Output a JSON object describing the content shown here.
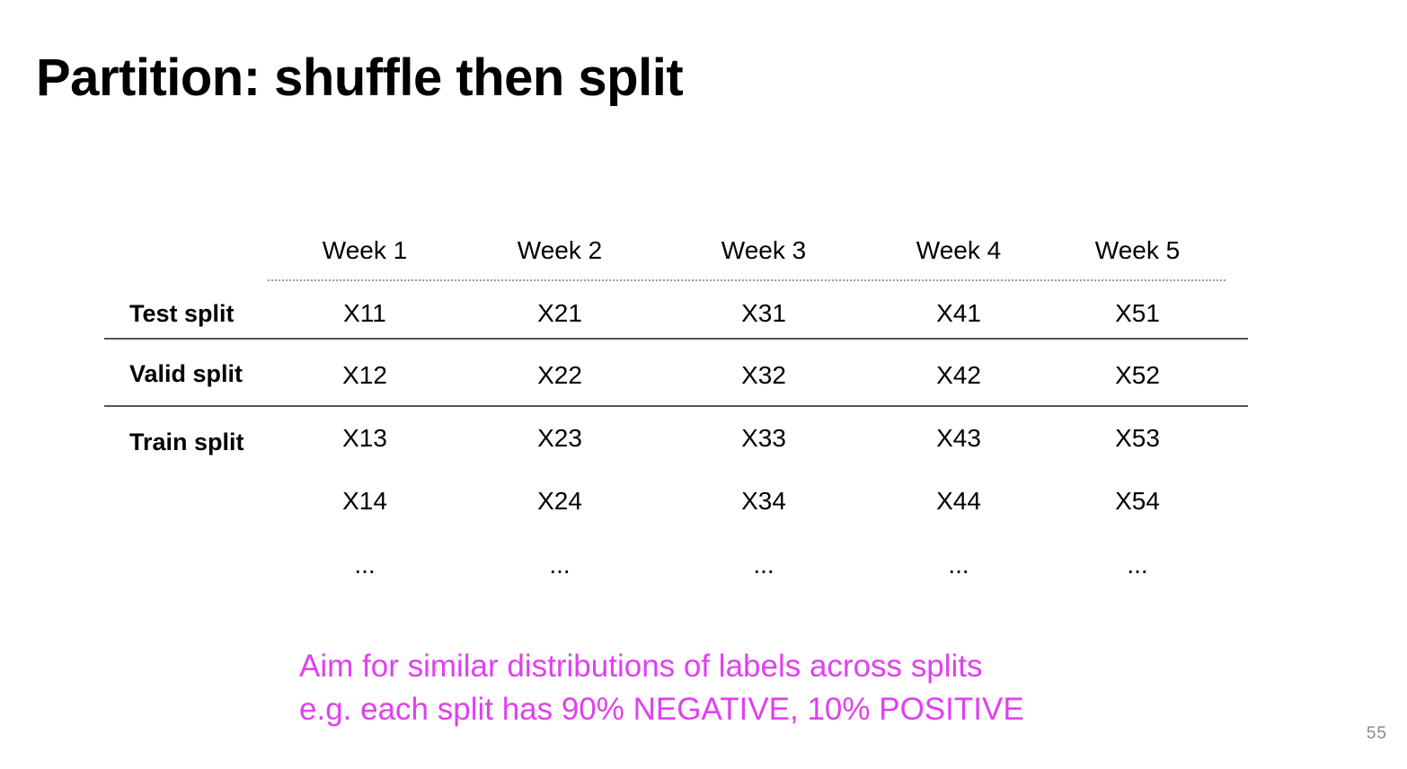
{
  "title": "Partition: shuffle then split",
  "table": {
    "columns": [
      "Week 1",
      "Week 2",
      "Week 3",
      "Week 4",
      "Week 5"
    ],
    "row_labels": {
      "test": "Test split",
      "valid": "Valid split",
      "train": "Train split"
    },
    "rows": [
      [
        "X11",
        "X21",
        "X31",
        "X41",
        "X51"
      ],
      [
        "X12",
        "X22",
        "X32",
        "X42",
        "X52"
      ],
      [
        "X13",
        "X23",
        "X33",
        "X43",
        "X53"
      ],
      [
        "X14",
        "X24",
        "X34",
        "X44",
        "X54"
      ],
      [
        "...",
        "...",
        "...",
        "...",
        "..."
      ]
    ]
  },
  "note": {
    "line1": "Aim for similar distributions of labels across splits",
    "line2": "e.g. each split has 90% NEGATIVE, 10% POSITIVE",
    "color": "#e040f0"
  },
  "page_number": "55"
}
